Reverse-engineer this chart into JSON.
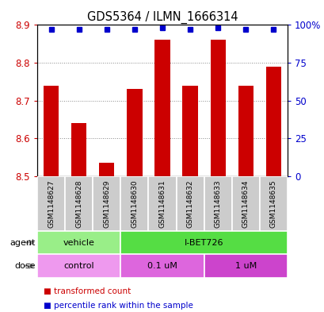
{
  "title": "GDS5364 / ILMN_1666314",
  "samples": [
    "GSM1148627",
    "GSM1148628",
    "GSM1148629",
    "GSM1148630",
    "GSM1148631",
    "GSM1148632",
    "GSM1148633",
    "GSM1148634",
    "GSM1148635"
  ],
  "bar_values": [
    8.74,
    8.64,
    8.535,
    8.73,
    8.862,
    8.74,
    8.862,
    8.74,
    8.79
  ],
  "percentile_values": [
    97,
    97,
    97,
    97,
    98,
    97,
    98,
    97,
    97
  ],
  "ymin": 8.5,
  "ymax": 8.9,
  "yticks": [
    8.5,
    8.6,
    8.7,
    8.8,
    8.9
  ],
  "right_yticks": [
    0,
    25,
    50,
    75,
    100
  ],
  "right_yticklabels": [
    "0",
    "25",
    "50",
    "75",
    "100%"
  ],
  "bar_color": "#cc0000",
  "dot_color": "#0000cc",
  "bar_width": 0.55,
  "agent_groups": [
    {
      "label": "vehicle",
      "start": 0,
      "end": 3,
      "color": "#99ee88"
    },
    {
      "label": "I-BET726",
      "start": 3,
      "end": 9,
      "color": "#55dd44"
    }
  ],
  "dose_groups": [
    {
      "label": "control",
      "start": 0,
      "end": 3,
      "color": "#ee99ee"
    },
    {
      "label": "0.1 uM",
      "start": 3,
      "end": 6,
      "color": "#dd66dd"
    },
    {
      "label": "1 uM",
      "start": 6,
      "end": 9,
      "color": "#cc44cc"
    }
  ],
  "sample_box_color": "#cccccc",
  "legend_items": [
    {
      "label": "transformed count",
      "color": "#cc0000"
    },
    {
      "label": "percentile rank within the sample",
      "color": "#0000cc"
    }
  ],
  "grid_color": "#888888",
  "plot_bg": "#ffffff",
  "label_fontsize": 8,
  "tick_fontsize": 8.5
}
